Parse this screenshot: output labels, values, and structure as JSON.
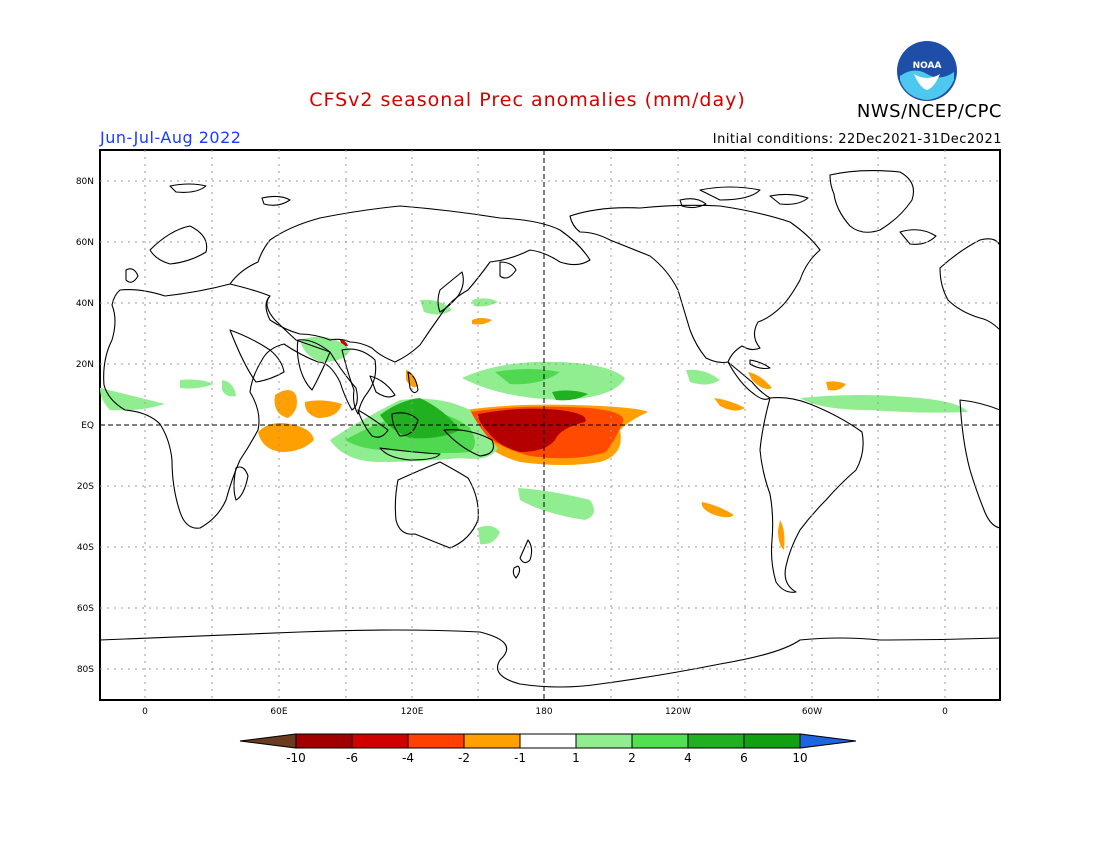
{
  "header": {
    "title": "CFSv2 seasonal Prec anomalies (mm/day)",
    "season": "Jun-Jul-Aug 2022",
    "initial_conditions": "Initial conditions: 22Dec2021-31Dec2021",
    "agency": "NWS/NCEP/CPC",
    "logo_text": "NOAA"
  },
  "axes": {
    "lat_labels": [
      "80N",
      "60N",
      "40N",
      "20N",
      "EQ",
      "20S",
      "40S",
      "60S",
      "80S"
    ],
    "lon_labels": [
      "0",
      "60E",
      "120E",
      "180",
      "120W",
      "60W",
      "0"
    ]
  },
  "colorbar": {
    "labels": [
      "-10",
      "-6",
      "-4",
      "-2",
      "-1",
      "1",
      "2",
      "4",
      "6",
      "10"
    ],
    "colors": [
      "#6b3a1f",
      "#a10000",
      "#d00000",
      "#ff4000",
      "#ff9f00",
      "#ffffff",
      "#90ee90",
      "#50e050",
      "#20b020",
      "#10a010",
      "#1e63e0"
    ]
  },
  "colors": {
    "title": "#d40000",
    "season": "#1a3cff",
    "dry_strong": "#b40000",
    "dry": "#ff4a00",
    "dry_weak": "#ffa000",
    "wet_weak": "#90ee90",
    "wet": "#50d850",
    "wet_strong": "#20b020"
  }
}
